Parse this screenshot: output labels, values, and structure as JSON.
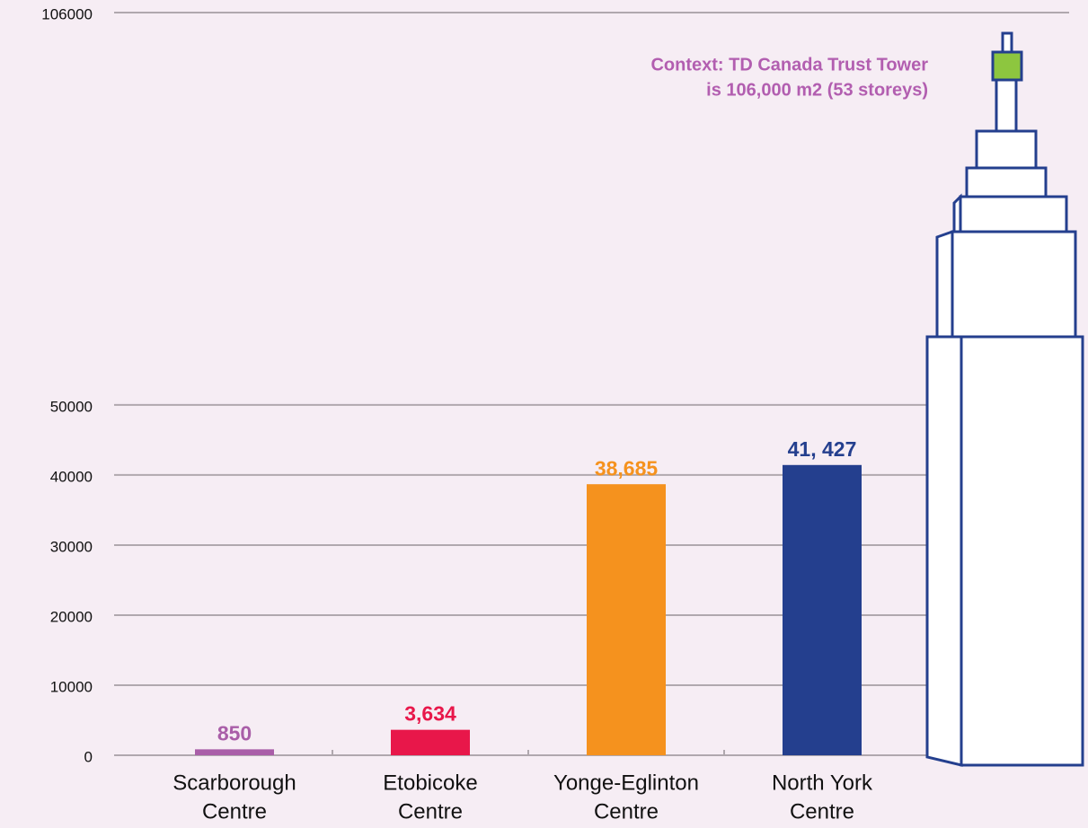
{
  "chart_data": {
    "type": "bar",
    "categories": [
      [
        "Scarborough",
        "Centre"
      ],
      [
        "Etobicoke",
        "Centre"
      ],
      [
        "Yonge-Eglinton",
        "Centre"
      ],
      [
        "North York",
        "Centre"
      ]
    ],
    "values": [
      850,
      3634,
      38685,
      41427
    ],
    "value_labels": [
      "850",
      "3,634",
      "38,685",
      "41, 427"
    ],
    "colors": [
      "#a95ea8",
      "#e8174a",
      "#f5921e",
      "#243f8e"
    ],
    "ylim": [
      0,
      106000
    ],
    "yticks": [
      0,
      10000,
      20000,
      30000,
      40000,
      50000,
      106000
    ],
    "grid": true,
    "annotation": [
      "Context: TD Canada Trust Tower",
      "is 106,000 m2 (53 storeys)"
    ]
  }
}
